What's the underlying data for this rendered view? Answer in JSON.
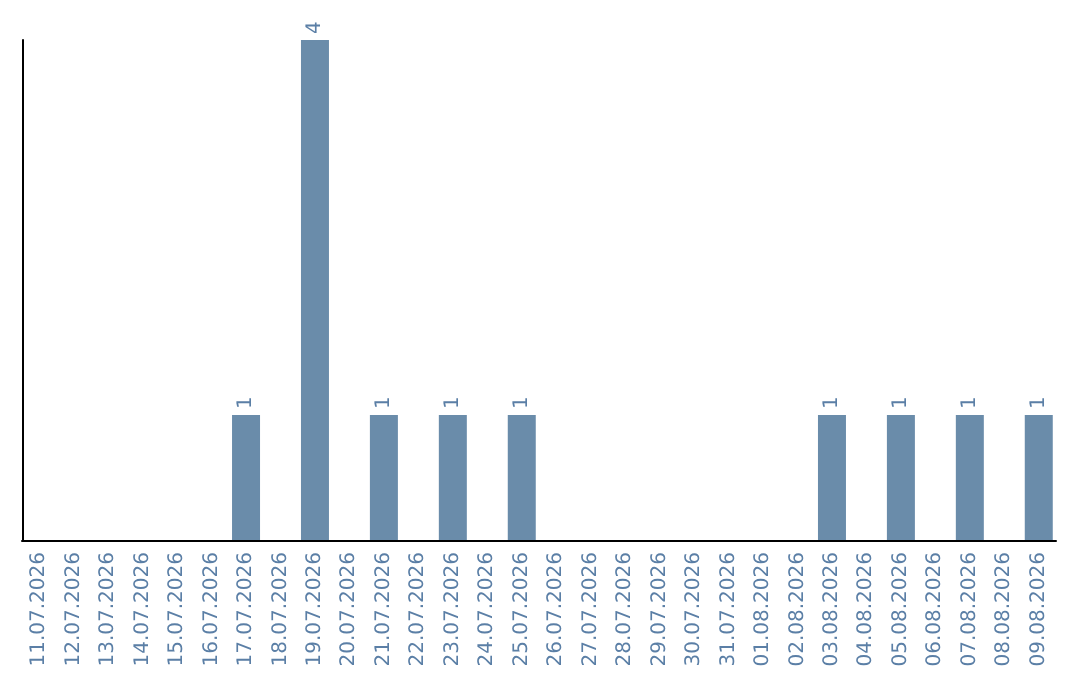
{
  "chart_data": {
    "type": "bar",
    "categories": [
      "11.07.2026",
      "12.07.2026",
      "13.07.2026",
      "14.07.2026",
      "15.07.2026",
      "16.07.2026",
      "17.07.2026",
      "18.07.2026",
      "19.07.2026",
      "20.07.2026",
      "21.07.2026",
      "22.07.2026",
      "23.07.2026",
      "24.07.2026",
      "25.07.2026",
      "26.07.2026",
      "27.07.2026",
      "28.07.2026",
      "29.07.2026",
      "30.07.2026",
      "31.07.2026",
      "01.08.2026",
      "02.08.2026",
      "03.08.2026",
      "04.08.2026",
      "05.08.2026",
      "06.08.2026",
      "07.08.2026",
      "08.08.2026",
      "09.08.2026"
    ],
    "values": [
      0,
      0,
      0,
      0,
      0,
      0,
      1,
      0,
      4,
      0,
      1,
      0,
      1,
      0,
      1,
      0,
      0,
      0,
      0,
      0,
      0,
      0,
      0,
      1,
      0,
      1,
      0,
      1,
      0,
      1
    ],
    "value_labels": [
      null,
      null,
      null,
      null,
      null,
      null,
      "1",
      null,
      "4",
      null,
      "1",
      null,
      "1",
      null,
      "1",
      null,
      null,
      null,
      null,
      null,
      null,
      null,
      null,
      "1",
      null,
      "1",
      null,
      "1",
      null,
      "1"
    ],
    "color": "#6a8caa",
    "ylim": [
      0,
      4
    ],
    "tick_labels": "x",
    "grid": false
  }
}
